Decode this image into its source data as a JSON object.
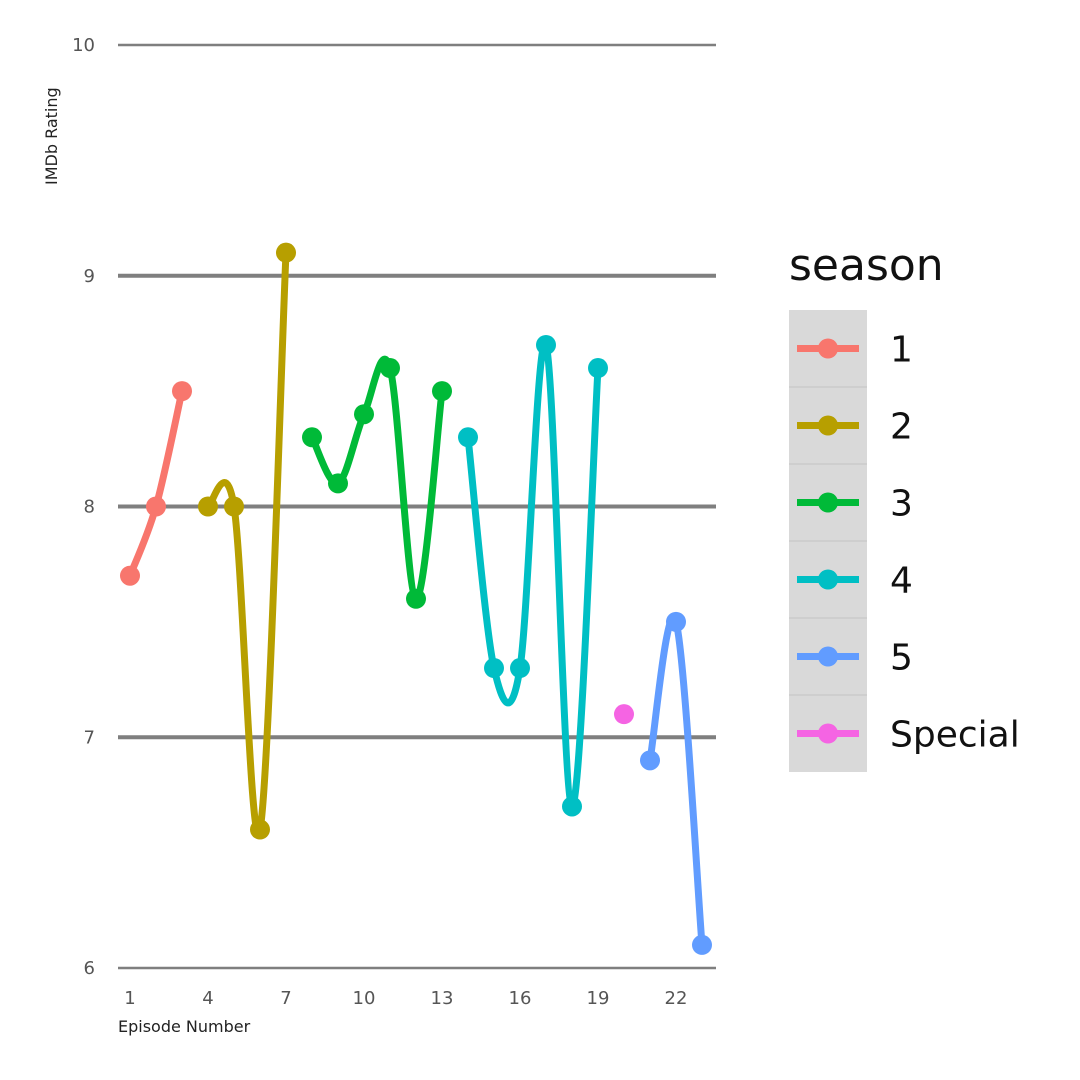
{
  "chart_data": {
    "type": "line",
    "xlabel": "Episode Number",
    "ylabel": "IMDb Rating",
    "xlim": [
      0.5,
      23.5
    ],
    "ylim": [
      6,
      10
    ],
    "x_ticks": [
      1,
      4,
      7,
      10,
      13,
      16,
      19,
      22
    ],
    "y_ticks": [
      6,
      7,
      8,
      9,
      10
    ],
    "grid": "horizontal",
    "legend": {
      "title": "season",
      "position": "right"
    },
    "series": [
      {
        "name": "1",
        "color": "#F8766D",
        "points": [
          {
            "x": 1,
            "y": 7.7
          },
          {
            "x": 2,
            "y": 8.0
          },
          {
            "x": 3,
            "y": 8.5
          }
        ]
      },
      {
        "name": "2",
        "color": "#B79F00",
        "points": [
          {
            "x": 4,
            "y": 8.0
          },
          {
            "x": 5,
            "y": 8.0
          },
          {
            "x": 6,
            "y": 6.6
          },
          {
            "x": 7,
            "y": 9.1
          }
        ]
      },
      {
        "name": "3",
        "color": "#00BA38",
        "points": [
          {
            "x": 8,
            "y": 8.3
          },
          {
            "x": 9,
            "y": 8.1
          },
          {
            "x": 10,
            "y": 8.4
          },
          {
            "x": 11,
            "y": 8.6
          },
          {
            "x": 12,
            "y": 7.6
          },
          {
            "x": 13,
            "y": 8.5
          }
        ]
      },
      {
        "name": "4",
        "color": "#00BFC4",
        "points": [
          {
            "x": 14,
            "y": 8.3
          },
          {
            "x": 15,
            "y": 7.3
          },
          {
            "x": 16,
            "y": 7.3
          },
          {
            "x": 17,
            "y": 8.7
          },
          {
            "x": 18,
            "y": 6.7
          },
          {
            "x": 19,
            "y": 8.6
          }
        ]
      },
      {
        "name": "5",
        "color": "#619CFF",
        "points": [
          {
            "x": 21,
            "y": 6.9
          },
          {
            "x": 22,
            "y": 7.5
          },
          {
            "x": 23,
            "y": 6.1
          }
        ]
      },
      {
        "name": "Special",
        "color": "#F564E3",
        "points": [
          {
            "x": 20,
            "y": 7.1
          }
        ]
      }
    ]
  }
}
